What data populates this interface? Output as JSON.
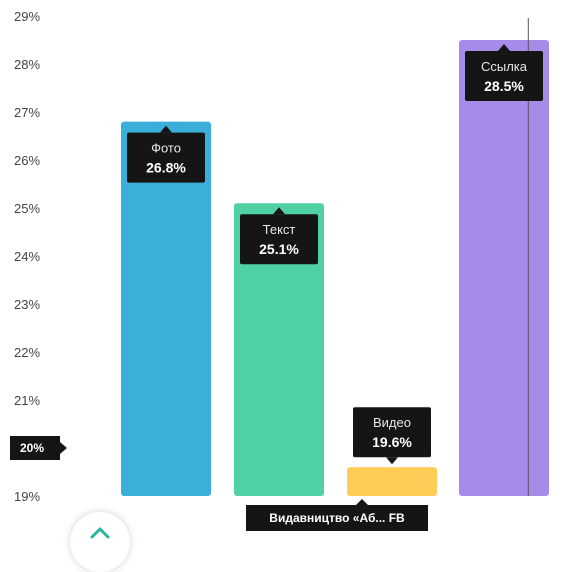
{
  "chart_data": {
    "type": "bar",
    "categories": [
      "Фото",
      "Текст",
      "Видео",
      "Ссылка"
    ],
    "values": [
      26.8,
      25.1,
      19.6,
      28.5
    ],
    "value_labels": [
      "26.8%",
      "25.1%",
      "19.6%",
      "28.5%"
    ],
    "colors": [
      "#3bafd9",
      "#4fd1a3",
      "#ffcc57",
      "#a78be8"
    ],
    "y_ticks": [
      "29%",
      "28%",
      "27%",
      "26%",
      "25%",
      "24%",
      "23%",
      "22%",
      "21%",
      "20%",
      "19%"
    ],
    "y_tick_values": [
      29,
      28,
      27,
      26,
      25,
      24,
      23,
      22,
      21,
      20,
      19
    ],
    "ylim": [
      19,
      29
    ],
    "highlight_y": {
      "value": 20,
      "label": "20%"
    },
    "highlight_x_label": "Видавництво «Аб... FB",
    "crosshair_series": "Ссылка",
    "grid": false,
    "title": "",
    "xlabel": "",
    "ylabel": ""
  },
  "ui": {
    "collapse_icon": "chevron-up-icon"
  }
}
